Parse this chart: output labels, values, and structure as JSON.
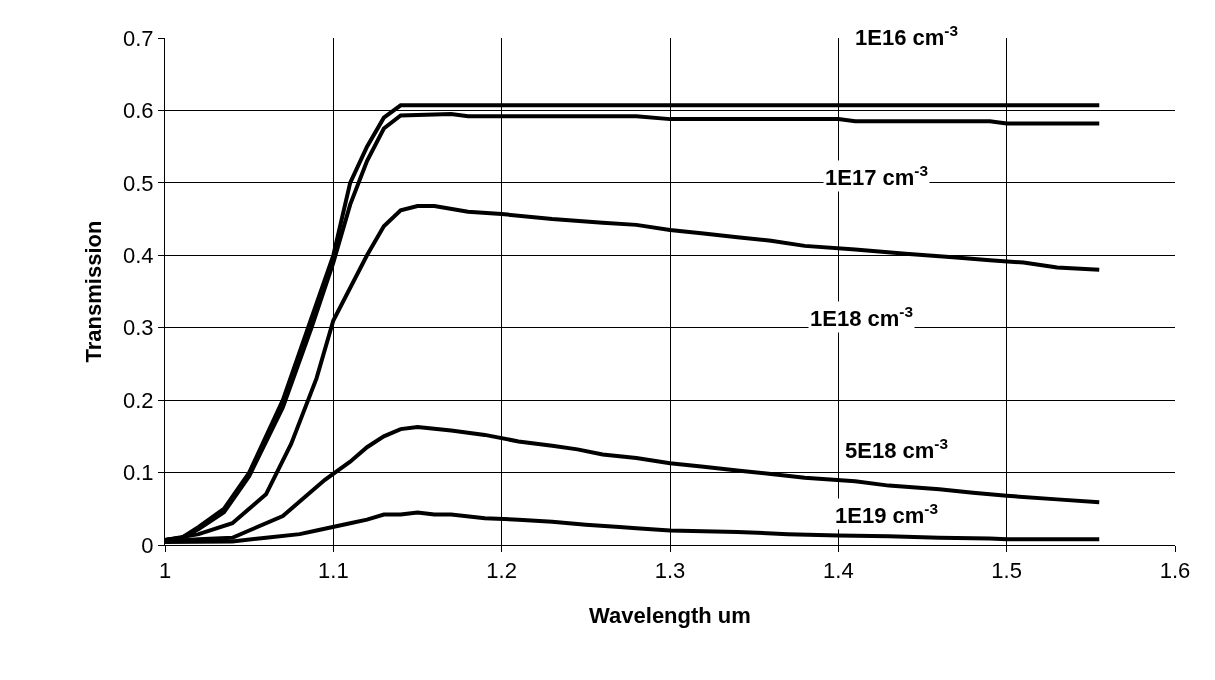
{
  "chart_data": {
    "type": "line",
    "xlabel": "Wavelength um",
    "ylabel": "Transmission",
    "xlim": [
      1,
      1.6
    ],
    "xticks": [
      1,
      1.1,
      1.2,
      1.3,
      1.4,
      1.5,
      1.6
    ],
    "ylim": [
      0,
      0.7
    ],
    "yticks": [
      0,
      0.1,
      0.2,
      0.3,
      0.4,
      0.5,
      0.6,
      0.7
    ],
    "grid": true,
    "legend": false,
    "marker": "none",
    "line_style": "solid",
    "series": [
      {
        "name": "1E16 cm$^{-3}$",
        "color": "#000000",
        "x": [
          1.0,
          1.01,
          1.02,
          1.035,
          1.05,
          1.07,
          1.085,
          1.1,
          1.11,
          1.12,
          1.13,
          1.14,
          1.3,
          1.555
        ],
        "values": [
          0.007,
          0.01,
          0.025,
          0.05,
          0.1,
          0.2,
          0.3,
          0.4,
          0.5,
          0.55,
          0.59,
          0.607,
          0.607,
          0.607
        ]
      },
      {
        "name": "1E17 cm$^{-3}$",
        "color": "#000000",
        "x": [
          1.0,
          1.01,
          1.02,
          1.035,
          1.05,
          1.07,
          1.087,
          1.1,
          1.11,
          1.12,
          1.13,
          1.14,
          1.17,
          1.18,
          1.28,
          1.3,
          1.4,
          1.41,
          1.49,
          1.5,
          1.555
        ],
        "values": [
          0.007,
          0.01,
          0.022,
          0.045,
          0.095,
          0.19,
          0.3,
          0.39,
          0.47,
          0.53,
          0.575,
          0.593,
          0.595,
          0.592,
          0.592,
          0.588,
          0.588,
          0.585,
          0.585,
          0.582,
          0.582
        ]
      },
      {
        "name": "1E18 cm$^{-3}$",
        "color": "#000000",
        "x": [
          1.0,
          1.02,
          1.04,
          1.06,
          1.075,
          1.09,
          1.1,
          1.12,
          1.13,
          1.14,
          1.15,
          1.16,
          1.18,
          1.2,
          1.23,
          1.26,
          1.28,
          1.3,
          1.32,
          1.34,
          1.36,
          1.38,
          1.41,
          1.44,
          1.47,
          1.49,
          1.51,
          1.53,
          1.555
        ],
        "values": [
          0.007,
          0.015,
          0.03,
          0.07,
          0.14,
          0.23,
          0.31,
          0.4,
          0.44,
          0.462,
          0.468,
          0.468,
          0.46,
          0.457,
          0.45,
          0.445,
          0.442,
          0.435,
          0.43,
          0.425,
          0.42,
          0.413,
          0.408,
          0.402,
          0.397,
          0.393,
          0.39,
          0.383,
          0.38
        ]
      },
      {
        "name": "5E18 cm$^{-3}$",
        "color": "#000000",
        "x": [
          1.0,
          1.02,
          1.04,
          1.05,
          1.07,
          1.08,
          1.095,
          1.11,
          1.12,
          1.13,
          1.14,
          1.15,
          1.17,
          1.19,
          1.21,
          1.23,
          1.245,
          1.26,
          1.28,
          1.3,
          1.32,
          1.34,
          1.36,
          1.38,
          1.41,
          1.43,
          1.46,
          1.48,
          1.5,
          1.53,
          1.555
        ],
        "values": [
          0.005,
          0.008,
          0.01,
          0.02,
          0.04,
          0.06,
          0.09,
          0.115,
          0.135,
          0.15,
          0.16,
          0.163,
          0.158,
          0.152,
          0.143,
          0.137,
          0.132,
          0.125,
          0.12,
          0.113,
          0.108,
          0.103,
          0.098,
          0.093,
          0.088,
          0.082,
          0.077,
          0.072,
          0.068,
          0.063,
          0.059
        ]
      },
      {
        "name": "1E19 cm$^{-3}$",
        "color": "#000000",
        "x": [
          1.0,
          1.04,
          1.06,
          1.08,
          1.09,
          1.11,
          1.12,
          1.13,
          1.14,
          1.15,
          1.16,
          1.17,
          1.19,
          1.21,
          1.23,
          1.25,
          1.27,
          1.28,
          1.3,
          1.34,
          1.37,
          1.4,
          1.43,
          1.46,
          1.49,
          1.5,
          1.555
        ],
        "values": [
          0.004,
          0.005,
          0.01,
          0.015,
          0.02,
          0.03,
          0.035,
          0.042,
          0.042,
          0.045,
          0.042,
          0.042,
          0.037,
          0.035,
          0.032,
          0.028,
          0.025,
          0.023,
          0.02,
          0.018,
          0.015,
          0.013,
          0.012,
          0.01,
          0.009,
          0.008,
          0.008
        ]
      }
    ]
  }
}
